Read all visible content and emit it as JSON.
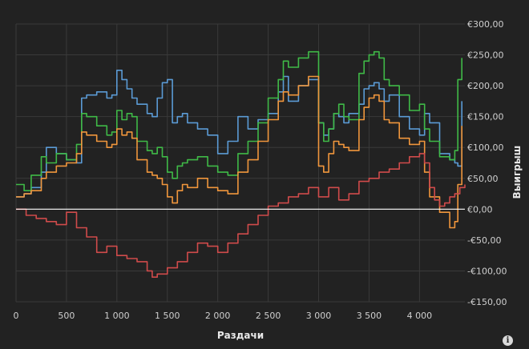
{
  "chart_data": {
    "type": "line",
    "xlabel": "Раздачи",
    "ylabel": "Выигрыш",
    "xlim": [
      0,
      4450
    ],
    "ylim": [
      -150,
      300
    ],
    "x_ticks": [
      0,
      500,
      1000,
      1500,
      2000,
      2500,
      3000,
      3500,
      4000
    ],
    "x_tick_labels": [
      "0",
      "500",
      "1 000",
      "1 500",
      "2 000",
      "2 500",
      "3 000",
      "3 500",
      "4 000"
    ],
    "y_ticks": [
      300,
      250,
      200,
      150,
      100,
      50,
      0,
      -50,
      -100,
      -150
    ],
    "y_tick_labels": [
      "€300,00",
      "€250,00",
      "€200,00",
      "€150,00",
      "€100,00",
      "€50,00",
      "€0,00",
      "-€50,00",
      "-€100,00",
      "-€150,00"
    ],
    "zero_line": true,
    "grid": true,
    "series": [
      {
        "color": "#5b9bd5",
        "x": [
          0,
          80,
          150,
          250,
          300,
          400,
          500,
          600,
          650,
          700,
          800,
          900,
          950,
          1000,
          1050,
          1100,
          1150,
          1200,
          1300,
          1350,
          1400,
          1450,
          1500,
          1550,
          1600,
          1650,
          1700,
          1800,
          1900,
          2000,
          2100,
          2200,
          2300,
          2400,
          2500,
          2600,
          2650,
          2700,
          2800,
          2900,
          3000,
          3050,
          3100,
          3150,
          3200,
          3250,
          3300,
          3400,
          3450,
          3500,
          3550,
          3600,
          3650,
          3700,
          3800,
          3900,
          4000,
          4050,
          4100,
          4200,
          4300,
          4350,
          4380,
          4420
        ],
        "y": [
          20,
          25,
          35,
          60,
          100,
          90,
          80,
          75,
          180,
          185,
          190,
          180,
          185,
          225,
          210,
          195,
          180,
          170,
          155,
          150,
          180,
          205,
          210,
          140,
          150,
          155,
          140,
          130,
          120,
          90,
          110,
          150,
          130,
          145,
          155,
          190,
          215,
          175,
          200,
          210,
          140,
          120,
          130,
          155,
          150,
          140,
          155,
          170,
          195,
          200,
          205,
          195,
          175,
          185,
          150,
          130,
          120,
          155,
          140,
          90,
          80,
          75,
          70,
          175
        ]
      },
      {
        "color": "#3fb947",
        "x": [
          0,
          80,
          150,
          250,
          300,
          400,
          500,
          600,
          650,
          700,
          800,
          900,
          950,
          1000,
          1050,
          1100,
          1150,
          1200,
          1300,
          1350,
          1400,
          1450,
          1500,
          1550,
          1600,
          1650,
          1700,
          1800,
          1900,
          2000,
          2100,
          2200,
          2300,
          2400,
          2500,
          2600,
          2650,
          2700,
          2800,
          2900,
          3000,
          3050,
          3100,
          3150,
          3200,
          3250,
          3300,
          3400,
          3450,
          3500,
          3550,
          3600,
          3650,
          3700,
          3800,
          3900,
          4000,
          4050,
          4100,
          4200,
          4300,
          4350,
          4380,
          4420
        ],
        "y": [
          40,
          30,
          55,
          85,
          75,
          90,
          80,
          105,
          155,
          150,
          135,
          120,
          125,
          160,
          145,
          155,
          150,
          110,
          95,
          90,
          100,
          85,
          60,
          50,
          70,
          75,
          80,
          85,
          70,
          60,
          55,
          90,
          110,
          140,
          180,
          210,
          240,
          230,
          245,
          255,
          140,
          110,
          130,
          155,
          170,
          150,
          145,
          220,
          240,
          250,
          255,
          245,
          210,
          200,
          185,
          160,
          170,
          130,
          110,
          85,
          80,
          95,
          210,
          245
        ]
      },
      {
        "color": "#f0963c",
        "x": [
          0,
          80,
          150,
          250,
          300,
          400,
          500,
          600,
          650,
          700,
          800,
          900,
          950,
          1000,
          1050,
          1100,
          1150,
          1200,
          1300,
          1350,
          1400,
          1450,
          1500,
          1550,
          1600,
          1650,
          1700,
          1800,
          1900,
          2000,
          2100,
          2200,
          2300,
          2400,
          2500,
          2600,
          2650,
          2700,
          2800,
          2900,
          3000,
          3050,
          3100,
          3150,
          3200,
          3250,
          3300,
          3400,
          3450,
          3500,
          3550,
          3600,
          3650,
          3700,
          3800,
          3900,
          4000,
          4050,
          4100,
          4200,
          4300,
          4350,
          4380,
          4420
        ],
        "y": [
          20,
          25,
          30,
          50,
          60,
          70,
          75,
          90,
          125,
          120,
          110,
          100,
          105,
          130,
          120,
          125,
          115,
          80,
          60,
          55,
          50,
          40,
          20,
          10,
          30,
          40,
          35,
          50,
          35,
          30,
          25,
          60,
          80,
          110,
          145,
          175,
          190,
          185,
          200,
          215,
          70,
          60,
          90,
          110,
          105,
          100,
          95,
          145,
          165,
          180,
          185,
          175,
          145,
          140,
          115,
          105,
          110,
          60,
          20,
          -5,
          -30,
          -20,
          40,
          135
        ]
      },
      {
        "color": "#d04b4b",
        "x": [
          0,
          100,
          200,
          300,
          400,
          500,
          600,
          700,
          800,
          900,
          1000,
          1100,
          1200,
          1300,
          1350,
          1400,
          1500,
          1600,
          1700,
          1800,
          1900,
          2000,
          2100,
          2200,
          2300,
          2400,
          2500,
          2600,
          2700,
          2800,
          2900,
          3000,
          3100,
          3200,
          3300,
          3400,
          3500,
          3600,
          3700,
          3800,
          3900,
          4000,
          4050,
          4100,
          4150,
          4200,
          4250,
          4300,
          4350,
          4400,
          4450
        ],
        "y": [
          0,
          -10,
          -15,
          -20,
          -25,
          -5,
          -30,
          -45,
          -70,
          -60,
          -75,
          -80,
          -85,
          -100,
          -110,
          -105,
          -95,
          -85,
          -70,
          -55,
          -60,
          -70,
          -55,
          -40,
          -25,
          -10,
          5,
          10,
          20,
          25,
          35,
          20,
          35,
          15,
          25,
          45,
          50,
          60,
          65,
          75,
          85,
          90,
          75,
          35,
          15,
          5,
          10,
          20,
          25,
          35,
          40
        ]
      }
    ]
  }
}
